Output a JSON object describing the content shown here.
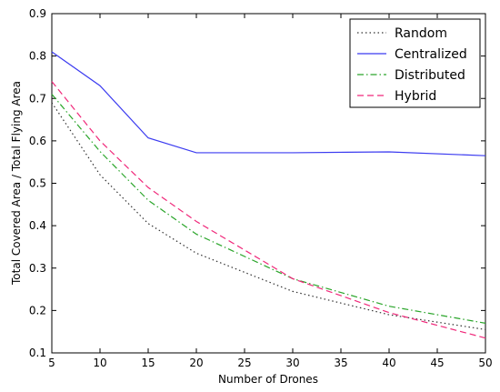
{
  "chart_data": {
    "type": "line",
    "title": "",
    "xlabel": "Number of Drones",
    "ylabel": "Total Covered Area / Total Flying Area",
    "xlim": [
      5,
      50
    ],
    "ylim": [
      0.1,
      0.9
    ],
    "x_ticks": [
      5,
      10,
      15,
      20,
      25,
      30,
      35,
      40,
      45,
      50
    ],
    "y_ticks": [
      0.1,
      0.2,
      0.3,
      0.4,
      0.5,
      0.6,
      0.7,
      0.8,
      0.9
    ],
    "x_tick_labels": [
      "5",
      "10",
      "15",
      "20",
      "25",
      "30",
      "35",
      "40",
      "45",
      "50"
    ],
    "y_tick_labels": [
      "0.1",
      "0.2",
      "0.3",
      "0.4",
      "0.5",
      "0.6",
      "0.7",
      "0.8",
      "0.9"
    ],
    "grid": false,
    "legend_position": "top-right",
    "x": [
      5,
      10,
      15,
      20,
      30,
      40,
      50
    ],
    "series": [
      {
        "name": "Random",
        "color": "#333333",
        "dash": "dotted",
        "values": [
          0.69,
          0.52,
          0.405,
          0.335,
          0.245,
          0.19,
          0.155
        ]
      },
      {
        "name": "Centralized",
        "color": "#3b3bf0",
        "dash": "solid",
        "values": [
          0.81,
          0.73,
          0.607,
          0.572,
          0.572,
          0.574,
          0.565
        ]
      },
      {
        "name": "Distributed",
        "color": "#2aa52a",
        "dash": "dashdot",
        "values": [
          0.71,
          0.575,
          0.46,
          0.38,
          0.275,
          0.21,
          0.17
        ]
      },
      {
        "name": "Hybrid",
        "color": "#f0287a",
        "dash": "dashed",
        "values": [
          0.74,
          0.6,
          0.49,
          0.41,
          0.275,
          0.195,
          0.135
        ]
      }
    ]
  }
}
